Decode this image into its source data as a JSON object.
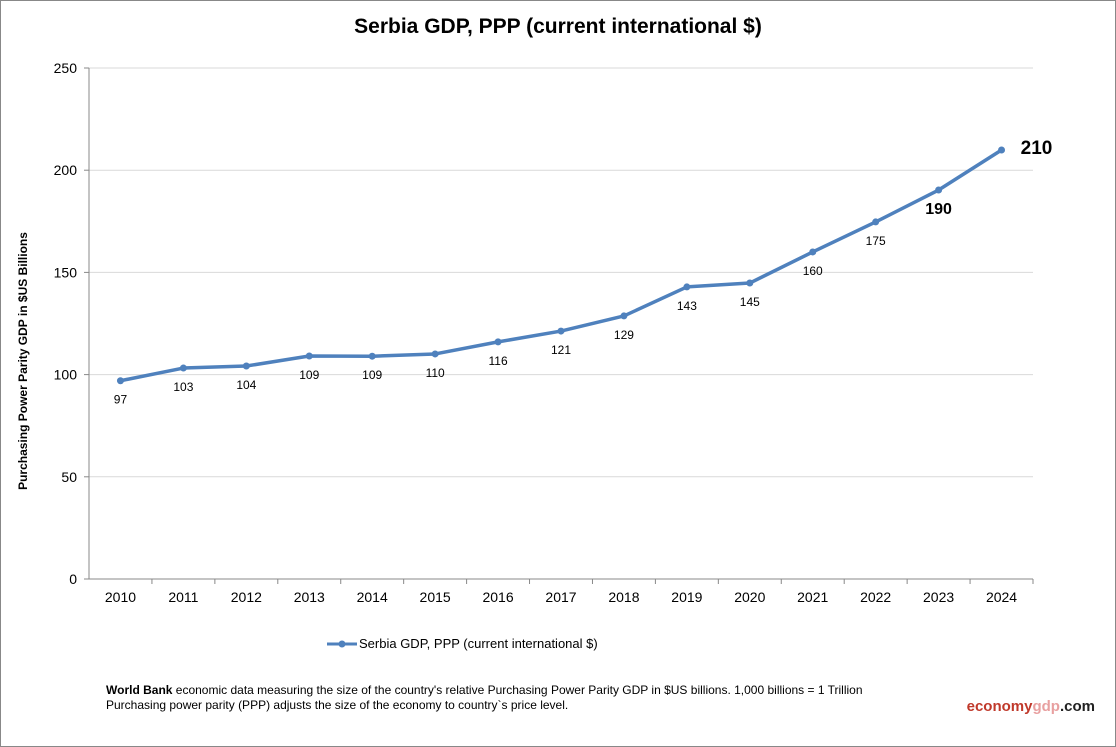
{
  "chart_data": {
    "type": "line",
    "title": "Serbia GDP, PPP (current international $)",
    "ylabel": "Purchasing Power Parity GDP in $US Billions",
    "xlabel": "",
    "ylim": [
      0,
      250
    ],
    "yticks": [
      0,
      50,
      100,
      150,
      200,
      250
    ],
    "grid": true,
    "legend_position": "bottom",
    "categories": [
      "2010",
      "2011",
      "2012",
      "2013",
      "2014",
      "2015",
      "2016",
      "2017",
      "2018",
      "2019",
      "2020",
      "2021",
      "2022",
      "2023",
      "2024"
    ],
    "series": [
      {
        "name": "Serbia GDP, PPP (current international $)",
        "color": "#4f81bd",
        "values": [
          97,
          103.2,
          104.2,
          109.1,
          109,
          110.1,
          116,
          121.3,
          128.7,
          142.9,
          144.8,
          160,
          174.7,
          190.3,
          209.9
        ],
        "labels": [
          "97",
          "103",
          "104",
          "109",
          "109",
          "110",
          "116",
          "121",
          "129",
          "143",
          "145",
          "160",
          "175",
          "190",
          "210"
        ]
      }
    ]
  },
  "footer": {
    "note_bold": "World Bank",
    "note_line1": " economic data  measuring the size of the country's relative  Purchasing Power Parity GDP in $US billions. 1,000 billions = 1 Trillion",
    "note_line2": "Purchasing power parity (PPP) adjusts the size of the economy to country`s price level.",
    "brand_part1": "economy",
    "brand_part2": "gdp",
    "brand_part3": ".com",
    "brand_colors": [
      "#c0392b",
      "#e8a0a0",
      "#222222"
    ]
  }
}
